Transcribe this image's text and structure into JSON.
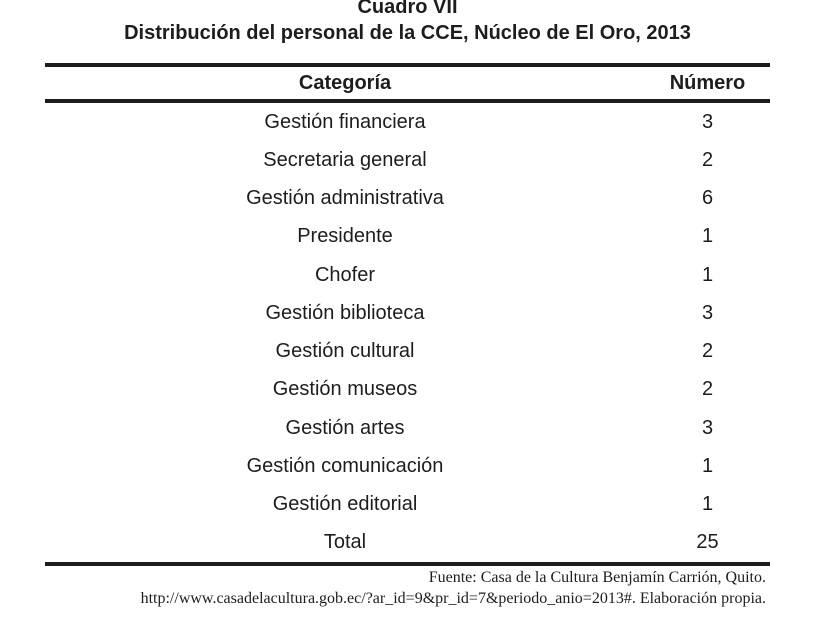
{
  "colors": {
    "background": "#ffffff",
    "text": "#1d1d1d",
    "rule": "#1d1d1d"
  },
  "title": {
    "line1": "Cuadro VII",
    "line2": "Distribución del personal de la CCE, Núcleo de El Oro, 2013"
  },
  "table": {
    "columns": [
      {
        "label": "Categoría"
      },
      {
        "label": "Número"
      }
    ],
    "rows": [
      {
        "category": "Gestión financiera",
        "number": "3"
      },
      {
        "category": "Secretaria general",
        "number": "2"
      },
      {
        "category": "Gestión administrativa",
        "number": "6"
      },
      {
        "category": "Presidente",
        "number": "1"
      },
      {
        "category": "Chofer",
        "number": "1"
      },
      {
        "category": "Gestión biblioteca",
        "number": "3"
      },
      {
        "category": "Gestión cultural",
        "number": "2"
      },
      {
        "category": "Gestión museos",
        "number": "2"
      },
      {
        "category": "Gestión artes",
        "number": "3"
      },
      {
        "category": "Gestión comunicación",
        "number": "1"
      },
      {
        "category": "Gestión editorial",
        "number": "1"
      }
    ],
    "total_row": {
      "category": "Total",
      "number": "25"
    }
  },
  "footer": {
    "line1": "Fuente: Casa de la Cultura Benjamín Carrión, Quito.",
    "line2": "http://www.casadelacultura.gob.ec/?ar_id=9&pr_id=7&periodo_anio=2013#. Elaboración propia."
  }
}
